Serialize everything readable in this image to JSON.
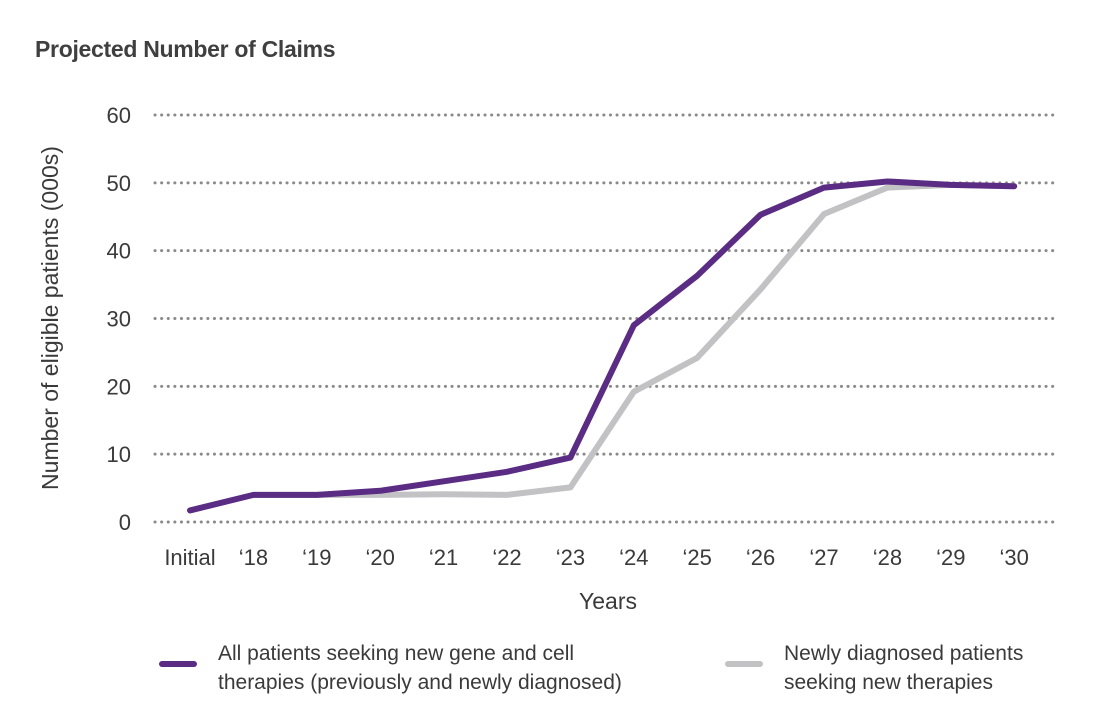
{
  "chart_data": {
    "type": "line",
    "title": "Projected Number of Claims",
    "xlabel": "Years",
    "ylabel": "Number of eligible patients (000s)",
    "ylim": [
      0,
      60
    ],
    "yticks": [
      0,
      10,
      20,
      30,
      40,
      50,
      60
    ],
    "grid": "dotted horizontal",
    "legend_position": "bottom",
    "categories": [
      "Initial",
      "‘18",
      "‘19",
      "‘20",
      "‘21",
      "‘22",
      "‘23",
      "‘24",
      "‘25",
      "‘26",
      "‘27",
      "‘28",
      "‘29",
      "‘30"
    ],
    "series": [
      {
        "name": "All patients seeking new gene and cell therapies (previously and newly diagnosed)",
        "legend_lines": [
          "All patients seeking new gene and cell",
          "therapies (previously and newly diagnosed)"
        ],
        "color": "#5b2c83",
        "values": [
          1.7,
          4.0,
          4.0,
          4.6,
          6.0,
          7.4,
          9.5,
          29.0,
          36.3,
          45.3,
          49.3,
          50.2,
          49.7,
          49.5
        ]
      },
      {
        "name": "Newly diagnosed patients seeking new therapies",
        "legend_lines": [
          "Newly diagnosed patients",
          "seeking new therapies"
        ],
        "color": "#c2c2c4",
        "values": [
          null,
          4.0,
          4.0,
          4.0,
          4.1,
          4.0,
          5.1,
          19.2,
          24.2,
          34.3,
          45.4,
          49.3,
          49.7,
          49.5
        ]
      }
    ]
  }
}
